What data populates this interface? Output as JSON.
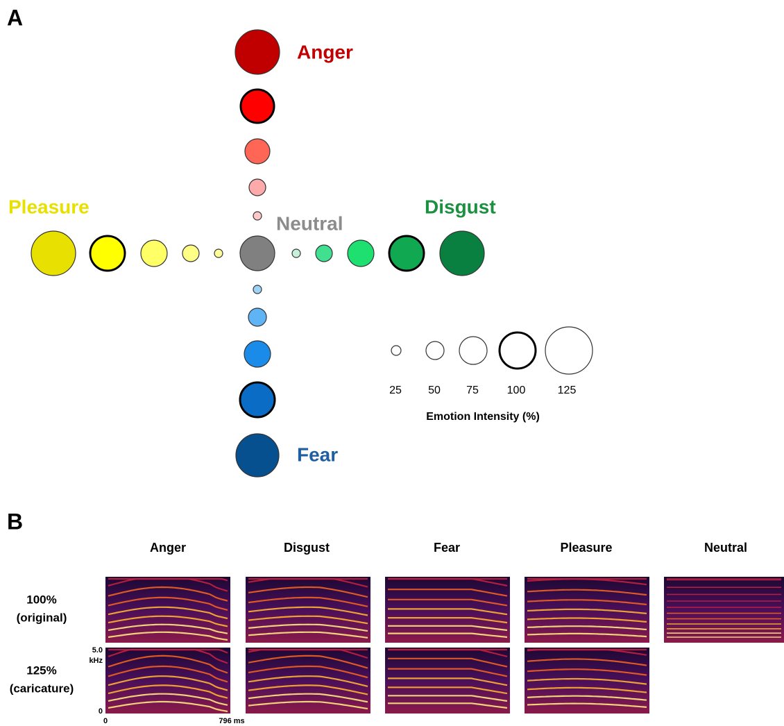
{
  "panel_a": {
    "label": "A",
    "emotions": {
      "anger": "Anger",
      "pleasure": "Pleasure",
      "neutral": "Neutral",
      "disgust": "Disgust",
      "fear": "Fear"
    },
    "legend": {
      "sizes": [
        25,
        50,
        75,
        100,
        125
      ],
      "title": "Emotion Intensity (%)"
    }
  },
  "panel_b": {
    "label": "B",
    "columns": [
      "Anger",
      "Disgust",
      "Fear",
      "Pleasure",
      "Neutral"
    ],
    "rows": [
      {
        "percent": "100%",
        "description": "(original)"
      },
      {
        "percent": "125%",
        "description": "(caricature)"
      }
    ],
    "axis": {
      "y_top": "5.0",
      "y_unit": "kHz",
      "y_bottom": "0",
      "x_start": "0",
      "x_end": "796 ms"
    }
  }
}
